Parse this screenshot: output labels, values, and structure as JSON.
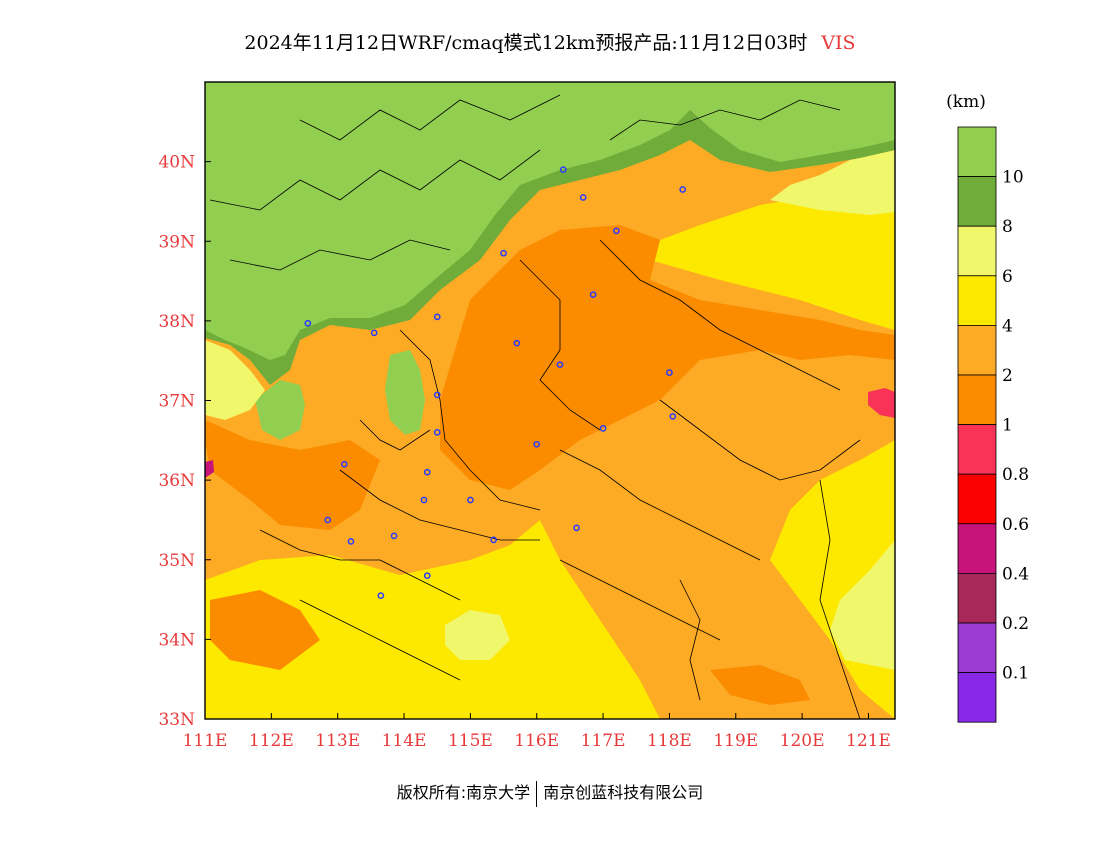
{
  "title": {
    "main": "2024年11月12日WRF/cmaq模式12km预报产品:11月12日03时",
    "variable": "VIS"
  },
  "colorbar": {
    "unit": "(km)",
    "labels": [
      "10",
      "8",
      "6",
      "4",
      "2",
      "1",
      "0.8",
      "0.6",
      "0.4",
      "0.2",
      "0.1"
    ],
    "colors": [
      "#92cf50",
      "#6fac3a",
      "#f1f76a",
      "#fde800",
      "#fdaa25",
      "#fb8c00",
      "#f93258",
      "#fa0000",
      "#c8137a",
      "#a8285a",
      "#9a3bd2",
      "#8a28e8"
    ]
  },
  "footer": {
    "left": "版权所有:南京大学",
    "right": "南京创蓝科技有限公司"
  },
  "chart_data": {
    "type": "heatmap",
    "xlabel": "",
    "ylabel": "",
    "xlim": [
      111,
      121.4
    ],
    "ylim": [
      33,
      41
    ],
    "x_ticks": [
      "111E",
      "112E",
      "113E",
      "114E",
      "115E",
      "116E",
      "117E",
      "118E",
      "119E",
      "120E",
      "121E"
    ],
    "y_ticks": [
      "33N",
      "34N",
      "35N",
      "36N",
      "37N",
      "38N",
      "39N",
      "40N"
    ],
    "x_tick_values": [
      111,
      112,
      113,
      114,
      115,
      116,
      117,
      118,
      119,
      120,
      121
    ],
    "y_tick_values": [
      33,
      34,
      35,
      36,
      37,
      38,
      39,
      40
    ],
    "station_markers": [
      {
        "lon": 116.4,
        "lat": 39.9
      },
      {
        "lon": 116.7,
        "lat": 39.55
      },
      {
        "lon": 118.2,
        "lat": 39.65
      },
      {
        "lon": 117.2,
        "lat": 39.13
      },
      {
        "lon": 115.5,
        "lat": 38.85
      },
      {
        "lon": 116.85,
        "lat": 38.33
      },
      {
        "lon": 112.55,
        "lat": 37.97
      },
      {
        "lon": 113.55,
        "lat": 37.85
      },
      {
        "lon": 114.5,
        "lat": 38.05
      },
      {
        "lon": 115.7,
        "lat": 37.72
      },
      {
        "lon": 116.35,
        "lat": 37.45
      },
      {
        "lon": 118.0,
        "lat": 37.35
      },
      {
        "lon": 114.5,
        "lat": 37.07
      },
      {
        "lon": 114.5,
        "lat": 36.6
      },
      {
        "lon": 117.0,
        "lat": 36.65
      },
      {
        "lon": 118.05,
        "lat": 36.8
      },
      {
        "lon": 116.0,
        "lat": 36.45
      },
      {
        "lon": 113.1,
        "lat": 36.2
      },
      {
        "lon": 114.35,
        "lat": 36.1
      },
      {
        "lon": 114.3,
        "lat": 35.75
      },
      {
        "lon": 115.0,
        "lat": 35.75
      },
      {
        "lon": 112.85,
        "lat": 35.5
      },
      {
        "lon": 113.2,
        "lat": 35.23
      },
      {
        "lon": 113.85,
        "lat": 35.3
      },
      {
        "lon": 115.35,
        "lat": 35.25
      },
      {
        "lon": 116.6,
        "lat": 35.4
      },
      {
        "lon": 114.35,
        "lat": 34.8
      },
      {
        "lon": 113.65,
        "lat": 34.55
      }
    ]
  }
}
